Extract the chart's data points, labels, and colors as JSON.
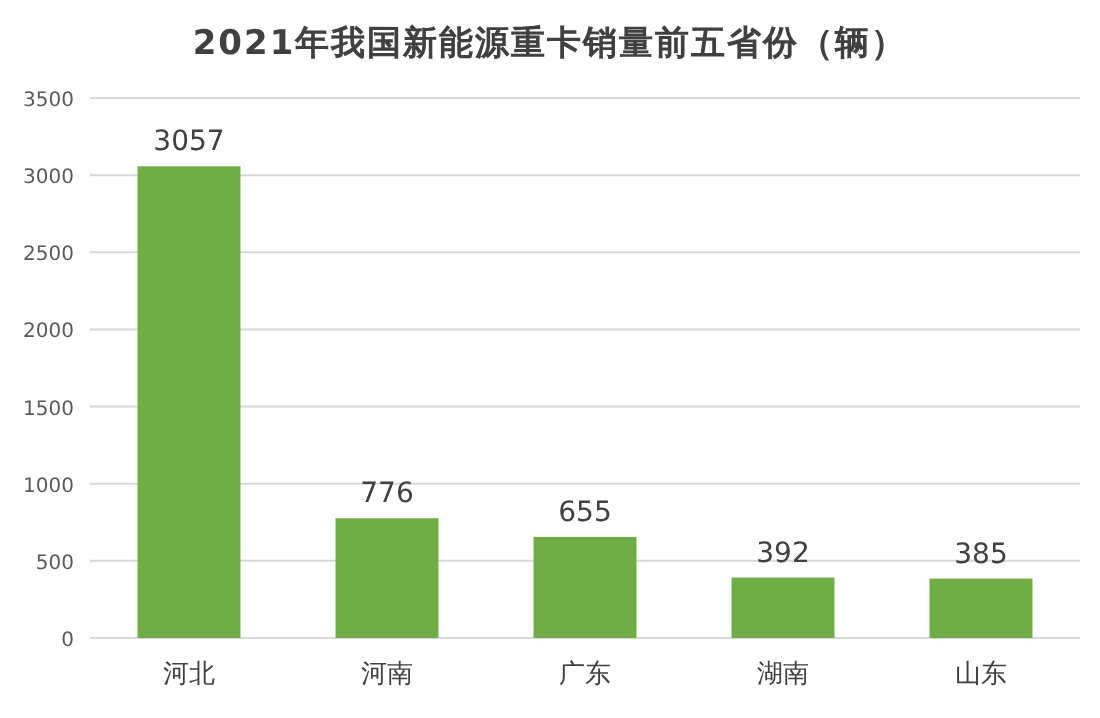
{
  "chart_data": {
    "type": "bar",
    "title": "2021年我国新能源重卡销量前五省份（辆）",
    "categories": [
      "河北",
      "河南",
      "广东",
      "湖南",
      "山东"
    ],
    "values": [
      3057,
      776,
      655,
      392,
      385
    ],
    "color": "#70ad47",
    "ylim": [
      0,
      3500
    ],
    "yticks": [
      0,
      500,
      1000,
      1500,
      2000,
      2500,
      3000,
      3500
    ],
    "grid": "y",
    "data_labels": true
  }
}
